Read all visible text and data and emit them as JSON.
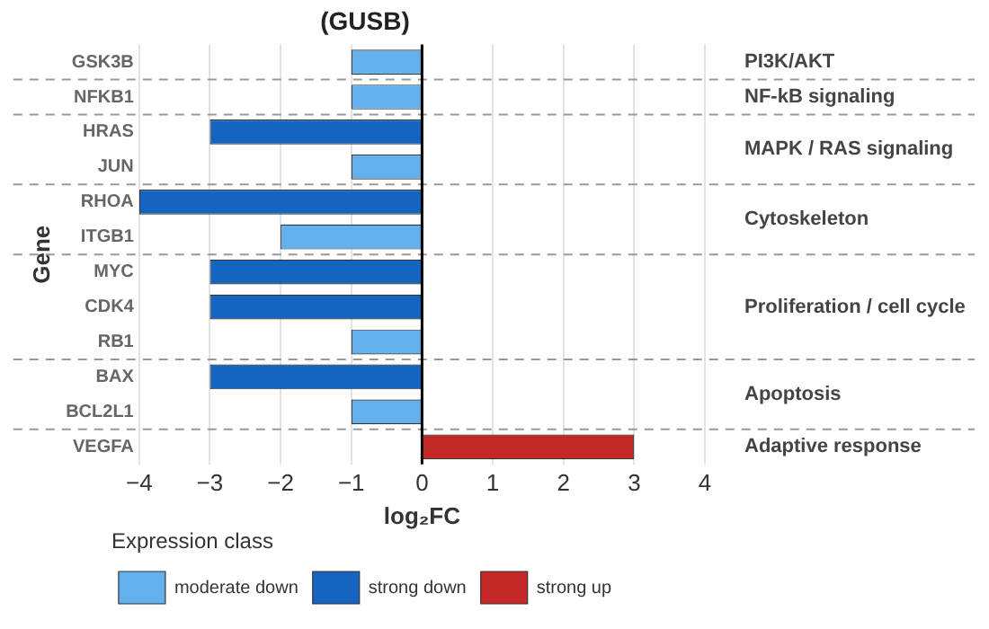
{
  "chart_data": {
    "type": "bar",
    "orientation": "horizontal",
    "title": "(GUSB)",
    "xlabel": "log₂FC",
    "ylabel": "Gene",
    "legend_title": "Expression class",
    "legend": "bottom",
    "grid": "x",
    "categories": [
      "GSK3B",
      "NFKB1",
      "HRAS",
      "JUN",
      "RHOA",
      "ITGB1",
      "MYC",
      "CDK4",
      "RB1",
      "BAX",
      "BCL2L1",
      "VEGFA"
    ],
    "series": [
      {
        "name": "moderate down",
        "color": "#64b0ec",
        "values": [
          -1,
          -1,
          null,
          -1,
          null,
          -2,
          null,
          null,
          -1,
          null,
          -1,
          null
        ]
      },
      {
        "name": "strong down",
        "color": "#1565c0",
        "values": [
          null,
          null,
          -3,
          null,
          -4,
          null,
          -3,
          -3,
          null,
          -3,
          null,
          null
        ]
      },
      {
        "name": "strong up",
        "color": "#c62828",
        "values": [
          null,
          null,
          null,
          null,
          null,
          null,
          null,
          null,
          null,
          null,
          null,
          3
        ]
      }
    ],
    "xlim": [
      -4,
      4
    ],
    "xticks": [
      -4,
      -3,
      -2,
      -1,
      0,
      1,
      2,
      3,
      4
    ],
    "annotations": [
      "PI3K/AKT",
      "NF-kB signaling",
      "MAPK / RAS signaling",
      "Cytoskeleton",
      "Proliferation / cell cycle",
      "Apoptosis",
      "Adaptive response"
    ]
  }
}
